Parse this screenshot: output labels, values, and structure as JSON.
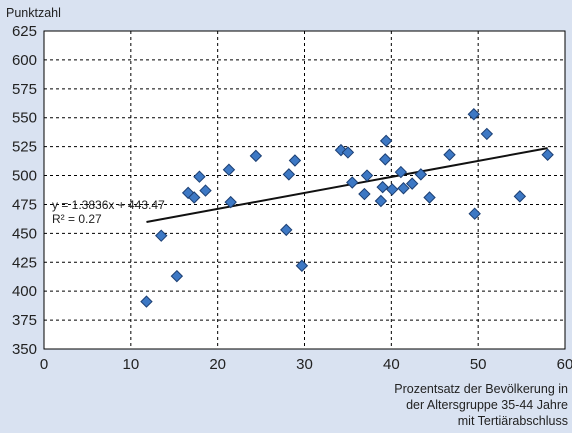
{
  "chart_data": {
    "type": "scatter",
    "ylabel": "Punktzahl",
    "xlabel_lines": [
      "Prozentsatz der Bevölkerung in",
      "der Altersgruppe 35-44 Jahre",
      "mit Tertiärabschluss"
    ],
    "xlim": [
      0,
      60
    ],
    "ylim": [
      350,
      625
    ],
    "x_ticks": [
      0,
      10,
      20,
      30,
      40,
      50,
      60
    ],
    "y_ticks": [
      350,
      375,
      400,
      425,
      450,
      475,
      500,
      525,
      550,
      575,
      600,
      625
    ],
    "grid": true,
    "marker_color": "#3d78c4",
    "points": [
      {
        "x": 11.8,
        "y": 391
      },
      {
        "x": 13.5,
        "y": 448
      },
      {
        "x": 15.3,
        "y": 413
      },
      {
        "x": 16.6,
        "y": 485
      },
      {
        "x": 17.3,
        "y": 481
      },
      {
        "x": 17.9,
        "y": 499
      },
      {
        "x": 18.6,
        "y": 487
      },
      {
        "x": 21.3,
        "y": 505
      },
      {
        "x": 21.5,
        "y": 477
      },
      {
        "x": 24.4,
        "y": 517
      },
      {
        "x": 27.9,
        "y": 453
      },
      {
        "x": 28.2,
        "y": 501
      },
      {
        "x": 28.9,
        "y": 513
      },
      {
        "x": 29.7,
        "y": 422
      },
      {
        "x": 34.2,
        "y": 522
      },
      {
        "x": 35.0,
        "y": 520
      },
      {
        "x": 35.5,
        "y": 494
      },
      {
        "x": 36.9,
        "y": 484
      },
      {
        "x": 37.2,
        "y": 500
      },
      {
        "x": 38.8,
        "y": 478
      },
      {
        "x": 39.0,
        "y": 490
      },
      {
        "x": 39.3,
        "y": 514
      },
      {
        "x": 39.4,
        "y": 530
      },
      {
        "x": 40.1,
        "y": 488
      },
      {
        "x": 41.1,
        "y": 503
      },
      {
        "x": 41.4,
        "y": 489
      },
      {
        "x": 42.4,
        "y": 493
      },
      {
        "x": 43.4,
        "y": 501
      },
      {
        "x": 44.4,
        "y": 481
      },
      {
        "x": 46.7,
        "y": 518
      },
      {
        "x": 49.5,
        "y": 553
      },
      {
        "x": 49.6,
        "y": 467
      },
      {
        "x": 51.0,
        "y": 536
      },
      {
        "x": 54.8,
        "y": 482
      },
      {
        "x": 58.0,
        "y": 518
      }
    ],
    "trendline": {
      "equation": "y = 1.3836x + 443.47",
      "r_squared": "R² = 0.27",
      "slope": 1.3836,
      "intercept": 443.47,
      "x_range": [
        11.8,
        58.0
      ]
    }
  }
}
